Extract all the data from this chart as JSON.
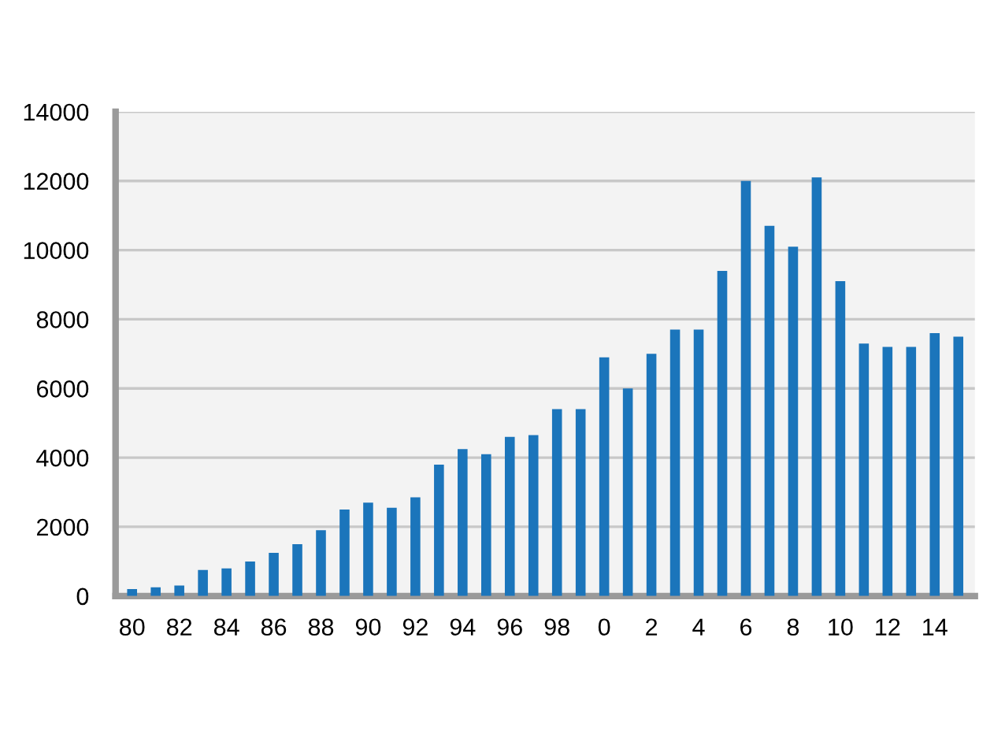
{
  "chart_data": {
    "type": "bar",
    "categories": [
      "80",
      null,
      "82",
      null,
      "84",
      null,
      "86",
      null,
      "88",
      null,
      "90",
      null,
      "92",
      null,
      "94",
      null,
      "96",
      null,
      "98",
      null,
      "0",
      null,
      "2",
      null,
      "4",
      null,
      "6",
      null,
      "8",
      null,
      "10",
      null,
      "12",
      null,
      "14",
      null
    ],
    "values": [
      200,
      250,
      300,
      750,
      800,
      1000,
      1250,
      1500,
      1900,
      2500,
      2700,
      2550,
      2850,
      3800,
      4250,
      4100,
      4600,
      4650,
      5400,
      5400,
      6900,
      6000,
      7000,
      7700,
      7700,
      9400,
      12000,
      10700,
      10100,
      12100,
      9100,
      7300,
      7200,
      7200,
      7600,
      7500
    ],
    "color": "#1b75bb",
    "ylim": [
      0,
      14000
    ],
    "yticks": [
      0,
      2000,
      4000,
      6000,
      8000,
      10000,
      12000,
      14000
    ],
    "grid": "y"
  }
}
